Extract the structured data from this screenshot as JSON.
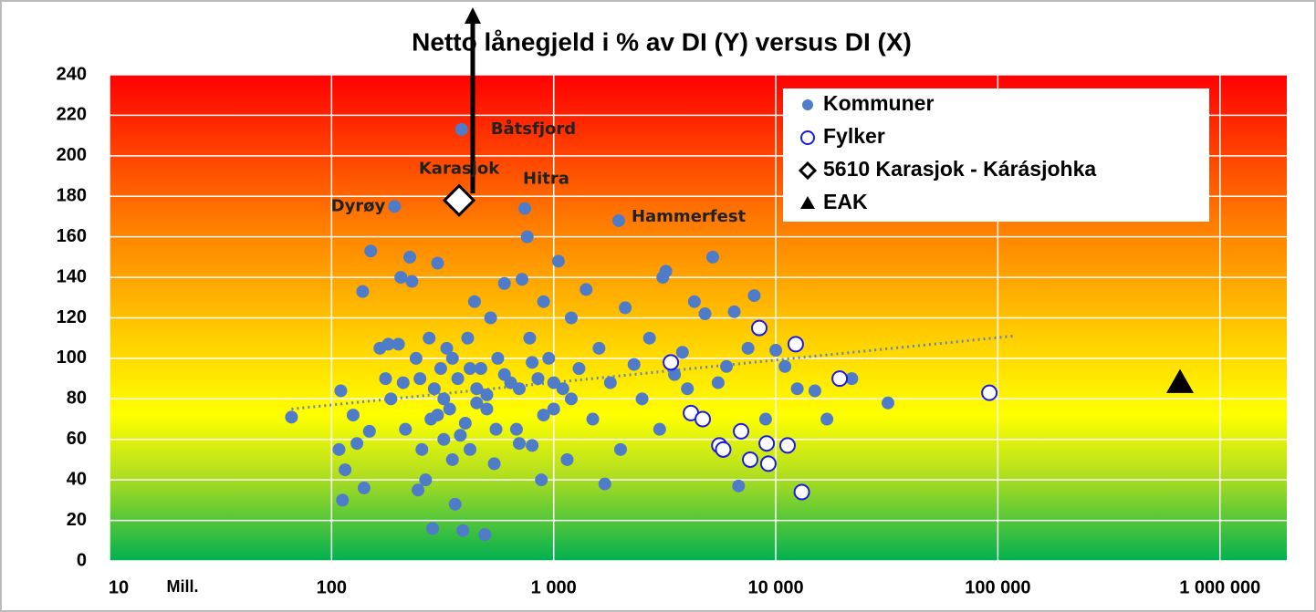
{
  "chart_data": {
    "type": "scatter",
    "title": "Netto lånegjeld i % av DI (Y) versus DI (X)",
    "x_unit_label": "Mill.",
    "xlog": true,
    "xlim": [
      10,
      2000000
    ],
    "xticks": [
      10,
      100,
      {
        "value": 1000,
        "label": "1 000"
      },
      {
        "value": 10000,
        "label": "10 000"
      },
      {
        "value": 100000,
        "label": "100 000"
      },
      {
        "value": 1000000,
        "label": "1 000 000"
      }
    ],
    "ylim": [
      0,
      240
    ],
    "yticks": [
      0,
      20,
      40,
      60,
      80,
      100,
      120,
      140,
      160,
      180,
      200,
      220,
      240
    ],
    "grid": true,
    "legend": "upper right",
    "series": [
      {
        "name": "Kommuner",
        "marker": "circle",
        "color": "#4f7cc9",
        "x": [
          66,
          110,
          108,
          112,
          115,
          125,
          130,
          138,
          140,
          148,
          150,
          165,
          175,
          180,
          185,
          192,
          200,
          205,
          210,
          215,
          225,
          230,
          240,
          245,
          255,
          265,
          275,
          285,
          290,
          300,
          310,
          320,
          330,
          340,
          360,
          370,
          385,
          390,
          400,
          410,
          420,
          440,
          450,
          470,
          490,
          500,
          520,
          540,
          560,
          600,
          640,
          680,
          720,
          741,
          760,
          780,
          800,
          850,
          880,
          900,
          950,
          1000,
          1050,
          1100,
          1150,
          1200,
          1300,
          1400,
          1500,
          1600,
          1700,
          1800,
          1963,
          2000,
          2100,
          2300,
          2500,
          2700,
          3000,
          3100,
          3200,
          3500,
          3800,
          4000,
          4300,
          4800,
          5200,
          5500,
          6000,
          6500,
          6800,
          7500,
          8000,
          9000,
          10000,
          11000,
          12500,
          15000,
          17000,
          22000,
          32000,
          250,
          280,
          320,
          350,
          380,
          420,
          450,
          500,
          550,
          600,
          700,
          800,
          900,
          1000,
          1200,
          700,
          350,
          300
        ],
        "values": [
          71,
          84,
          55,
          30,
          45,
          72,
          58,
          133,
          36,
          64,
          153,
          105,
          90,
          107,
          80,
          175,
          107,
          140,
          88,
          65,
          150,
          138,
          100,
          35,
          55,
          40,
          110,
          16,
          85,
          147,
          95,
          60,
          105,
          75,
          28,
          90,
          213,
          15,
          68,
          110,
          55,
          128,
          85,
          95,
          13,
          75,
          120,
          48,
          100,
          137,
          88,
          65,
          139,
          174,
          160,
          110,
          57,
          90,
          40,
          128,
          100,
          75,
          148,
          85,
          50,
          120,
          95,
          134,
          70,
          105,
          38,
          88,
          168,
          55,
          125,
          97,
          80,
          110,
          65,
          140,
          143,
          92,
          103,
          85,
          128,
          122,
          150,
          88,
          96,
          123,
          37,
          105,
          131,
          70,
          104,
          96,
          85,
          84,
          70,
          90,
          78,
          90,
          70,
          80,
          100,
          62,
          95,
          78,
          82,
          65,
          92,
          85,
          98,
          72,
          88,
          80,
          58,
          50,
          72
        ]
      },
      {
        "name": "Fylker",
        "marker": "open-circle",
        "color": "#1a1ae6",
        "x": [
          3370,
          8430,
          12300,
          19400,
          91600,
          4150,
          4690,
          6980,
          5570,
          5800,
          7670,
          9100,
          9260,
          11300,
          13100
        ],
        "values": [
          98,
          115,
          107,
          90,
          83,
          73,
          70,
          64,
          57,
          55,
          50,
          58,
          48,
          57,
          34
        ]
      },
      {
        "name": "5610 Karasjok - Kárásjohka",
        "marker": "diamond",
        "color": "#000000",
        "x": [
          375
        ],
        "values": [
          178
        ]
      },
      {
        "name": "EAK",
        "marker": "triangle",
        "color": "#000000",
        "x": [
          661000
        ],
        "values": [
          88
        ]
      }
    ],
    "trend": {
      "color": "#6a86b8",
      "x": [
        66,
        117000
      ],
      "values": [
        75,
        111
      ]
    },
    "annotations": [
      {
        "text": "Båtsfjord",
        "x": 385,
        "y": 213
      },
      {
        "text": "Dyrøy",
        "x": 192,
        "y": 175
      },
      {
        "text": "Karasjok",
        "x": 375,
        "y": 178
      },
      {
        "text": "Hitra",
        "x": 741,
        "y": 174
      },
      {
        "text": "Hammerfest",
        "x": 1963,
        "y": 168
      }
    ]
  }
}
